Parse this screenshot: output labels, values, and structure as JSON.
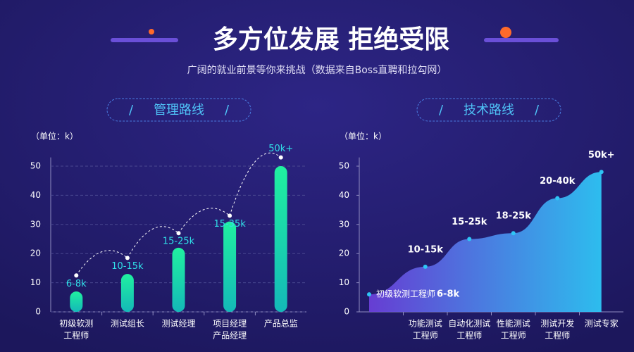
{
  "title": "多方位发展 拒绝受限",
  "subtitle": "广阔的就业前景等你来挑战（数据来自Boss直聘和拉勾网）",
  "chart_data": [
    {
      "type": "bar",
      "title": "管理路线",
      "unit_label": "（单位：k）",
      "categories": [
        [
          "初级软测",
          "工程师"
        ],
        [
          "测试组长"
        ],
        [
          "测试经理"
        ],
        [
          "项目经理",
          "产品经理"
        ],
        [
          "产品总监"
        ]
      ],
      "values": [
        7,
        13,
        22,
        31,
        50
      ],
      "color": "#1de9a0",
      "point_values": [
        12.5,
        18.5,
        27,
        33,
        53
      ],
      "point_labels": [
        "6-8k",
        "10-15k",
        "15-25k",
        "15-35k",
        "50k+"
      ],
      "ylim": [
        0,
        53
      ],
      "yticks": [
        0,
        10,
        20,
        30,
        40,
        50
      ],
      "grid": true
    },
    {
      "type": "area",
      "title": "技术路线",
      "unit_label": "（单位：k）",
      "categories": [
        null,
        [
          "功能测试",
          "工程师"
        ],
        [
          "自动化测试",
          "工程师"
        ],
        [
          "性能测试",
          "工程师"
        ],
        [
          "测试开发",
          "工程师"
        ],
        [
          "测试专家"
        ]
      ],
      "values": [
        6,
        15.5,
        25,
        27,
        39,
        48
      ],
      "color": "#2ec5f5",
      "start_label": "初级软测工程师",
      "point_labels": [
        "6-8k",
        "10-15k",
        "15-25k",
        "18-25k",
        "20-40k",
        "50k+"
      ],
      "ylim": [
        0,
        53
      ],
      "yticks": [
        0,
        10,
        20,
        30,
        40,
        50
      ],
      "grid": false
    }
  ]
}
